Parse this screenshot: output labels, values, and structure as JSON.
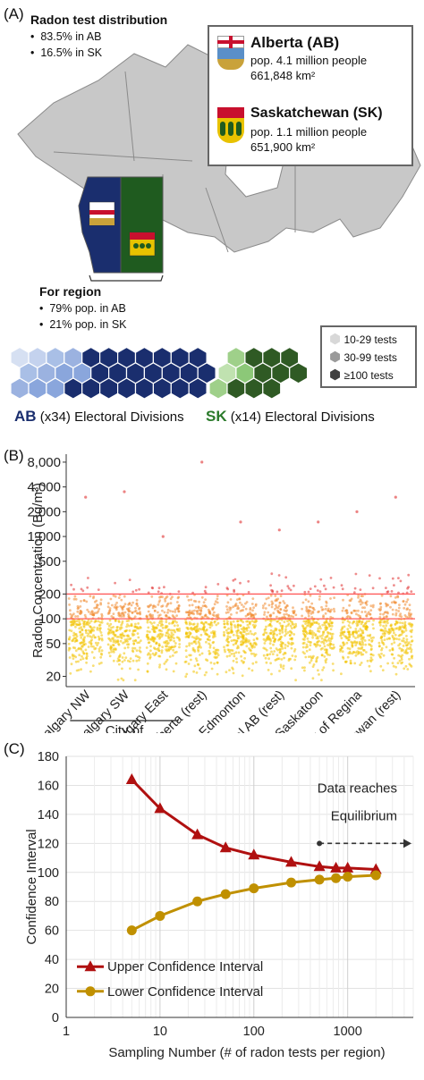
{
  "panel_a": {
    "label": "(A)",
    "distribution_title": "Radon test distribution",
    "distribution_items": [
      "83.5% in AB",
      "16.5% in SK"
    ],
    "region_title": "For region",
    "region_items": [
      "79% pop. in AB",
      "21% pop. in SK"
    ],
    "alberta": {
      "name": "Alberta (AB)",
      "pop": "pop. 4.1 million people",
      "area": "661,848 km²"
    },
    "saskatchewan": {
      "name": "Saskatchewan (SK)",
      "pop": "pop. 1.1 million people",
      "area": "651,900 km²"
    },
    "legend": [
      "10-29 tests",
      "30-99 tests",
      "≥100 tests"
    ],
    "ab_divisions": {
      "code": "AB",
      "count": "(x34)",
      "text": "Electoral Divisions"
    },
    "sk_divisions": {
      "code": "SK",
      "count": "(x14)",
      "text": "Electoral Divisions"
    },
    "colors": {
      "ab_blue": "#1a2e6e",
      "sk_green": "#1f5b1f",
      "map_gray": "#c8c8c8"
    }
  },
  "panel_b": {
    "label": "(B)",
    "bracket_label": "City of"
  },
  "panel_c": {
    "label": "(C)",
    "annotation": [
      "Data reaches",
      "Equilibrium"
    ]
  },
  "chart_data": [
    {
      "type": "scatter",
      "ylabel": "Radon Concentration (Bq/m³)",
      "yscale": "log",
      "ylim": [
        15,
        10000
      ],
      "yticks": [
        20,
        50,
        100,
        200,
        500,
        1000,
        2000,
        4000,
        8000
      ],
      "ytick_labels": [
        "20",
        "50",
        "100",
        "200",
        "500",
        "1,000",
        "2,000",
        "4,000",
        "8,000"
      ],
      "categories": [
        "Calgary NW",
        "Calgary SW",
        "Calgary East",
        "S. Alberta (rest)",
        "City of Edmonton",
        "N. & Central AB (rest)",
        "City of Saskatoon",
        "City of Regina",
        "Saskatchewan (rest)"
      ],
      "reference_lines": [
        100,
        200
      ],
      "category_max": [
        3000,
        3500,
        1000,
        8000,
        1500,
        1200,
        1500,
        2000,
        3000
      ],
      "colors": {
        "low": "#f2c200",
        "mid": "#f08a30",
        "high": "#e03030"
      }
    },
    {
      "type": "line",
      "xlabel": "Sampling Number (# of radon tests per region)",
      "ylabel": "Confidence Interval",
      "xscale": "log",
      "xlim": [
        1,
        5000
      ],
      "ylim": [
        0,
        180
      ],
      "yticks": [
        0,
        20,
        40,
        60,
        80,
        100,
        120,
        140,
        160,
        180
      ],
      "xticks": [
        1,
        10,
        100,
        1000
      ],
      "grid": true,
      "legend_position": "bottom-left",
      "x": [
        5,
        10,
        25,
        50,
        100,
        250,
        500,
        750,
        1000,
        2000
      ],
      "series": [
        {
          "name": "Upper Confidence Interval",
          "marker": "triangle",
          "color": "#b01010",
          "values": [
            164,
            144,
            126,
            117,
            112,
            107,
            104,
            103,
            103,
            102
          ]
        },
        {
          "name": "Lower Confidence Interval",
          "marker": "circle",
          "color": "#c09000",
          "values": [
            60,
            70,
            80,
            85,
            89,
            93,
            95,
            96,
            97,
            98
          ]
        }
      ]
    }
  ]
}
